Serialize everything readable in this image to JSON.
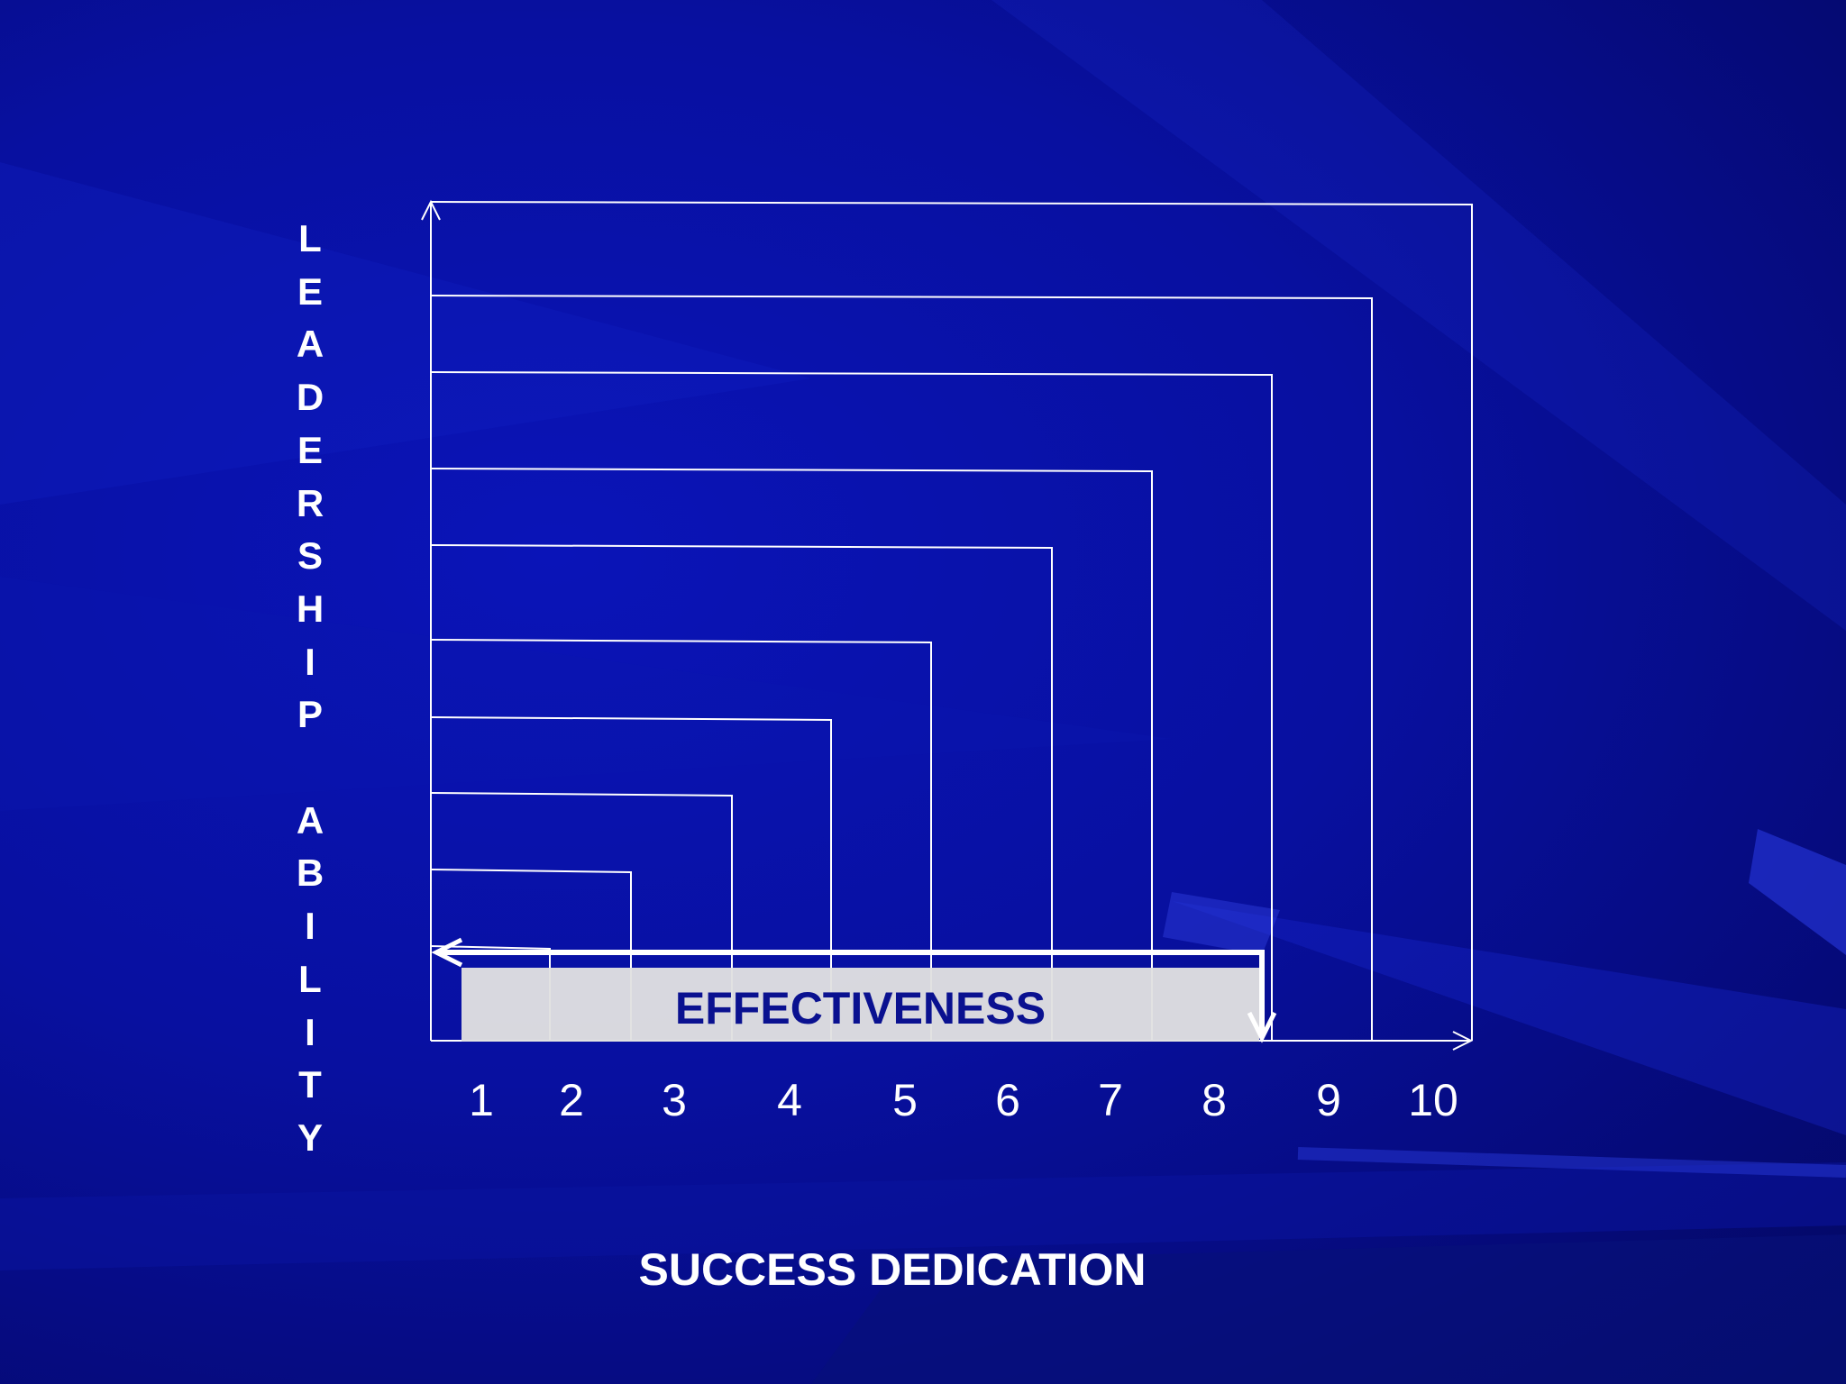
{
  "colors": {
    "background": "#0810a0",
    "lines": "#ffffff",
    "highlight_box": "#e1e1e1",
    "highlight_text": "#0a1190"
  },
  "y_axis_label_letters": [
    "L",
    "E",
    "A",
    "D",
    "E",
    "R",
    "S",
    "H",
    "I",
    "P",
    "",
    "A",
    "B",
    "I",
    "L",
    "I",
    "T",
    "Y"
  ],
  "x_axis_label": "SUCCESS DEDICATION",
  "x_ticks": [
    "1",
    "2",
    "3",
    "4",
    "5",
    "6",
    "7",
    "8",
    "9",
    "10"
  ],
  "highlight_label": "EFFECTIVENESS",
  "nested_levels": [
    1,
    2,
    3,
    4,
    5,
    6,
    7,
    8,
    9,
    10
  ],
  "highlight_range": [
    1,
    8
  ]
}
